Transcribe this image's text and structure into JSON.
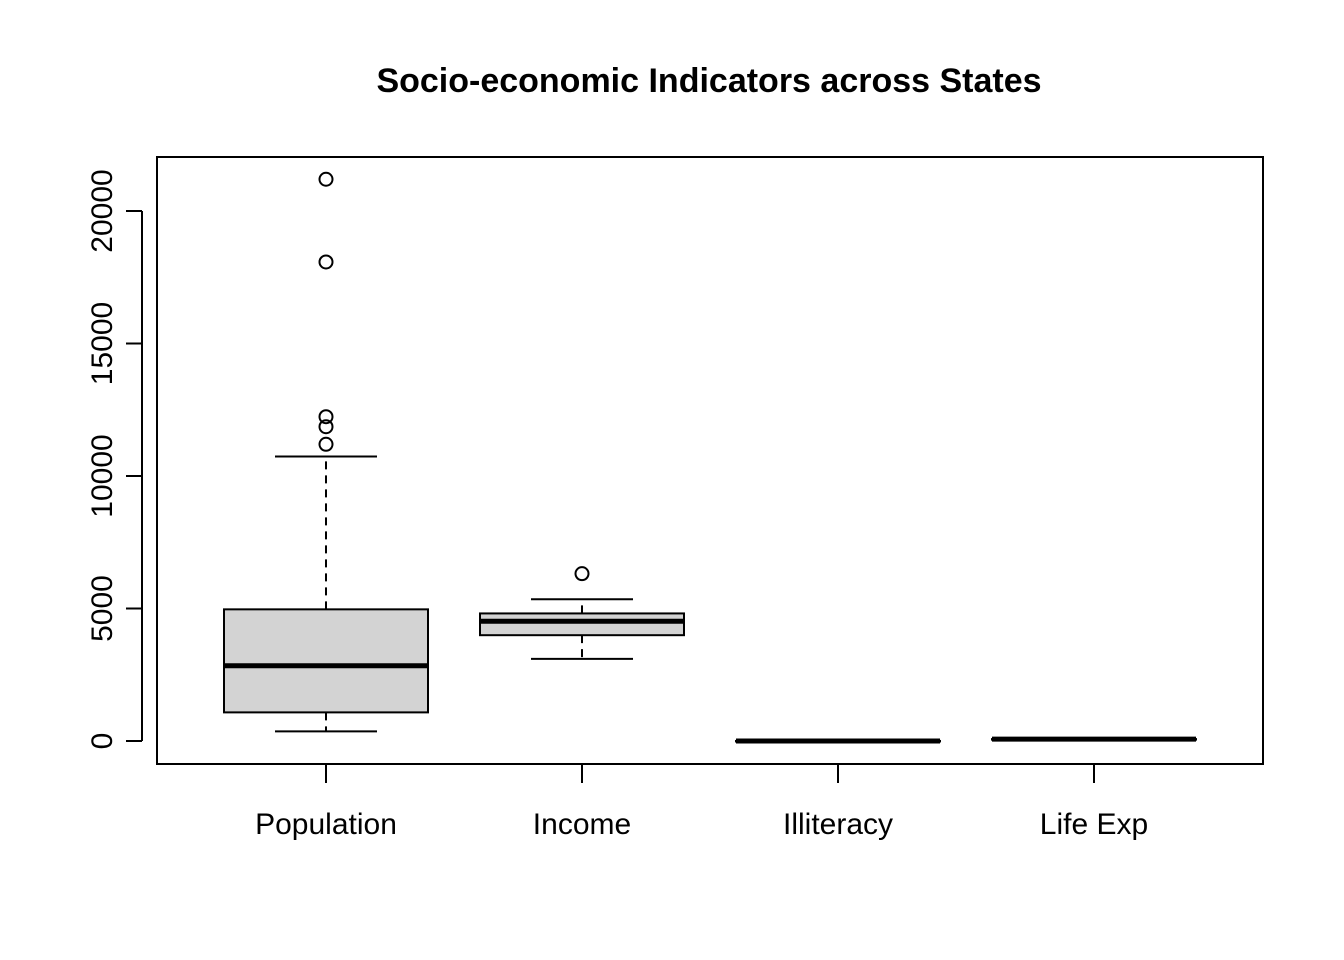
{
  "chart_data": {
    "type": "box",
    "title": "Socio-economic Indicators across States",
    "xlabel": "",
    "ylabel": "",
    "categories": [
      "Population",
      "Income",
      "Illiteracy",
      "Life Exp"
    ],
    "ylim": [
      -800,
      22400
    ],
    "yticks": [
      0,
      5000,
      10000,
      15000,
      20000
    ],
    "box_fill": "#d3d3d3",
    "boxes": [
      {
        "name": "Population",
        "min": 365,
        "q1": 1080,
        "median": 2838,
        "q3": 4968,
        "max": 10735,
        "outliers": [
          11197,
          11860,
          12237,
          18076,
          21198
        ]
      },
      {
        "name": "Income",
        "min": 3098,
        "q1": 3993,
        "median": 4519,
        "q3": 4814,
        "max": 5348,
        "outliers": [
          6315
        ]
      },
      {
        "name": "Illiteracy",
        "min": 0.5,
        "q1": 0.625,
        "median": 0.95,
        "q3": 1.575,
        "max": 2.8,
        "outliers": []
      },
      {
        "name": "Life Exp",
        "min": 67.96,
        "q1": 70.12,
        "median": 70.67,
        "q3": 71.89,
        "max": 73.6,
        "outliers": []
      }
    ]
  }
}
